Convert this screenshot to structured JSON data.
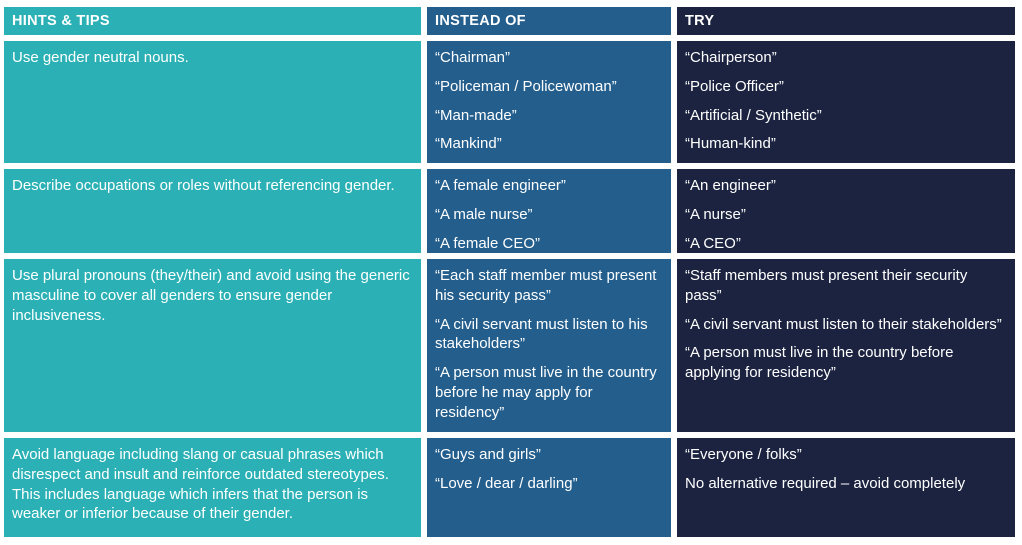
{
  "colors": {
    "teal": "#2bb1b5",
    "steel_blue": "#235e8d",
    "navy": "#1b2340",
    "text": "#ffffff",
    "gridline": "#ffffff"
  },
  "table": {
    "headers": {
      "hints_tips": "HINTS & TIPS",
      "instead_of": "INSTEAD OF",
      "try": "TRY"
    },
    "rows": [
      {
        "hint": "Use gender neutral nouns.",
        "instead_of": [
          "“Chairman”",
          "“Policeman / Policewoman”",
          "“Man-made”",
          "“Mankind”"
        ],
        "try": [
          "“Chairperson”",
          "“Police Officer”",
          "“Artificial / Synthetic”",
          "“Human-kind”"
        ]
      },
      {
        "hint": "Describe occupations or roles without referencing gender.",
        "instead_of": [
          "“A female engineer”",
          "“A male nurse”",
          "“A female CEO”"
        ],
        "try": [
          "“An engineer”",
          "“A nurse”",
          "“A CEO”"
        ]
      },
      {
        "hint": "Use plural pronouns (they/their) and avoid using the generic masculine to cover all genders to ensure gender inclusiveness.",
        "instead_of": [
          "“Each staff member must present his security pass”",
          "“A civil servant must listen to his stakeholders”",
          "“A person must live in the country before he may apply for residency”"
        ],
        "try": [
          "“Staff members must present their security pass”",
          "“A civil servant must listen to their stakeholders”",
          "“A person must live in the country before applying for residency”"
        ]
      },
      {
        "hint": "Avoid language including slang or casual phrases which disrespect and insult and reinforce outdated stereotypes. This includes language which infers that the person is weaker or inferior because of their gender.",
        "instead_of": [
          "“Guys and girls”",
          "“Love / dear / darling”"
        ],
        "try": [
          "“Everyone / folks”",
          "No alternative required – avoid completely"
        ]
      }
    ]
  }
}
